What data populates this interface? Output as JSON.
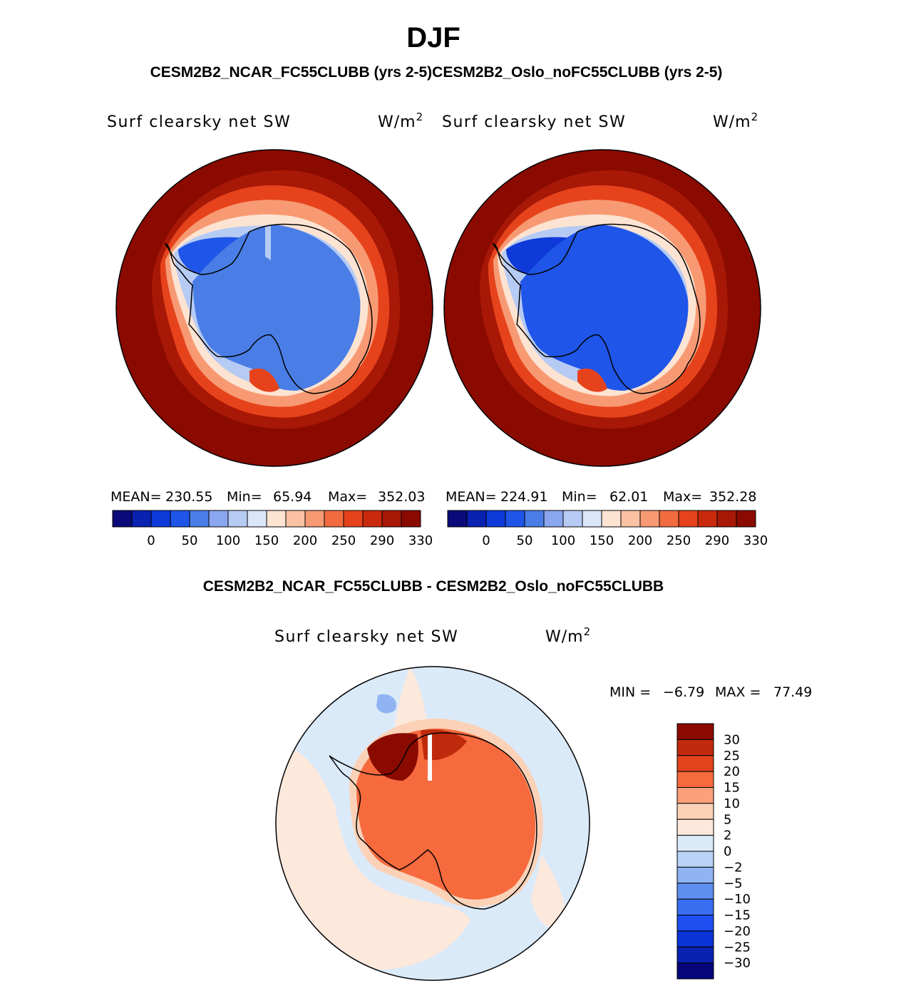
{
  "title": "DJF",
  "subtitle": "CESM2B2_NCAR_FC55CLUBB (yrs 2-5)CESM2B2_Oslo_noFC55CLUBB (yrs 2-5)",
  "diff_title": "CESM2B2_NCAR_FC55CLUBB - CESM2B2_Oslo_noFC55CLUBB",
  "variable": "Surf clearsky net SW",
  "units_base": "W/m",
  "units_exp": "2",
  "panels": [
    {
      "name": "CESM2B2_NCAR_FC55CLUBB",
      "stats": {
        "mean_label": "MEAN=",
        "mean": "230.55",
        "min_label": "Min=",
        "min": "65.94",
        "max_label": "Max=",
        "max": "352.03"
      }
    },
    {
      "name": "CESM2B2_Oslo_noFC55CLUBB",
      "stats": {
        "mean_label": "MEAN=",
        "mean": "224.91",
        "min_label": "Min=",
        "min": "62.01",
        "max_label": "Max=",
        "max": "352.28"
      }
    }
  ],
  "diff_panel": {
    "min_label": "MIN =",
    "min": "−6.79",
    "max_label": "MAX =",
    "max": "77.49"
  },
  "colorbar_abs": {
    "colors": [
      "#0a0a7a",
      "#0a22b0",
      "#0d3ad8",
      "#1f55e8",
      "#4a7ee6",
      "#8aa6ee",
      "#b6cbf4",
      "#dae7f8",
      "#fde3d2",
      "#fbc1a3",
      "#f79a73",
      "#f26b40",
      "#e6431c",
      "#c92a0d",
      "#a81806",
      "#8a0a00"
    ],
    "tick_labels": [
      "0",
      "50",
      "100",
      "150",
      "200",
      "250",
      "290",
      "330"
    ]
  },
  "colorbar_diff": {
    "colors": [
      "#8a0a00",
      "#c02a0c",
      "#e3431c",
      "#f66a3e",
      "#fba07a",
      "#fbd2b8",
      "#fde8dc",
      "#dbeaf9",
      "#b9d2f6",
      "#8fb4f1",
      "#5e8ff0",
      "#3a6ef0",
      "#1d4ff0",
      "#0a34d8",
      "#0a22b0",
      "#06067a"
    ],
    "tick_labels": [
      "30",
      "25",
      "20",
      "15",
      "10",
      "5",
      "2",
      "0",
      "−2",
      "−5",
      "−10",
      "−15",
      "−20",
      "−25",
      "−30"
    ]
  },
  "colors": {
    "ocean_far": "#8a0a00",
    "ice_blue_1": "#4a7ee6",
    "ice_blue_2": "#2a5ee8",
    "diff_ocean": "#dbeaf9",
    "diff_land": "#f66a3e"
  }
}
